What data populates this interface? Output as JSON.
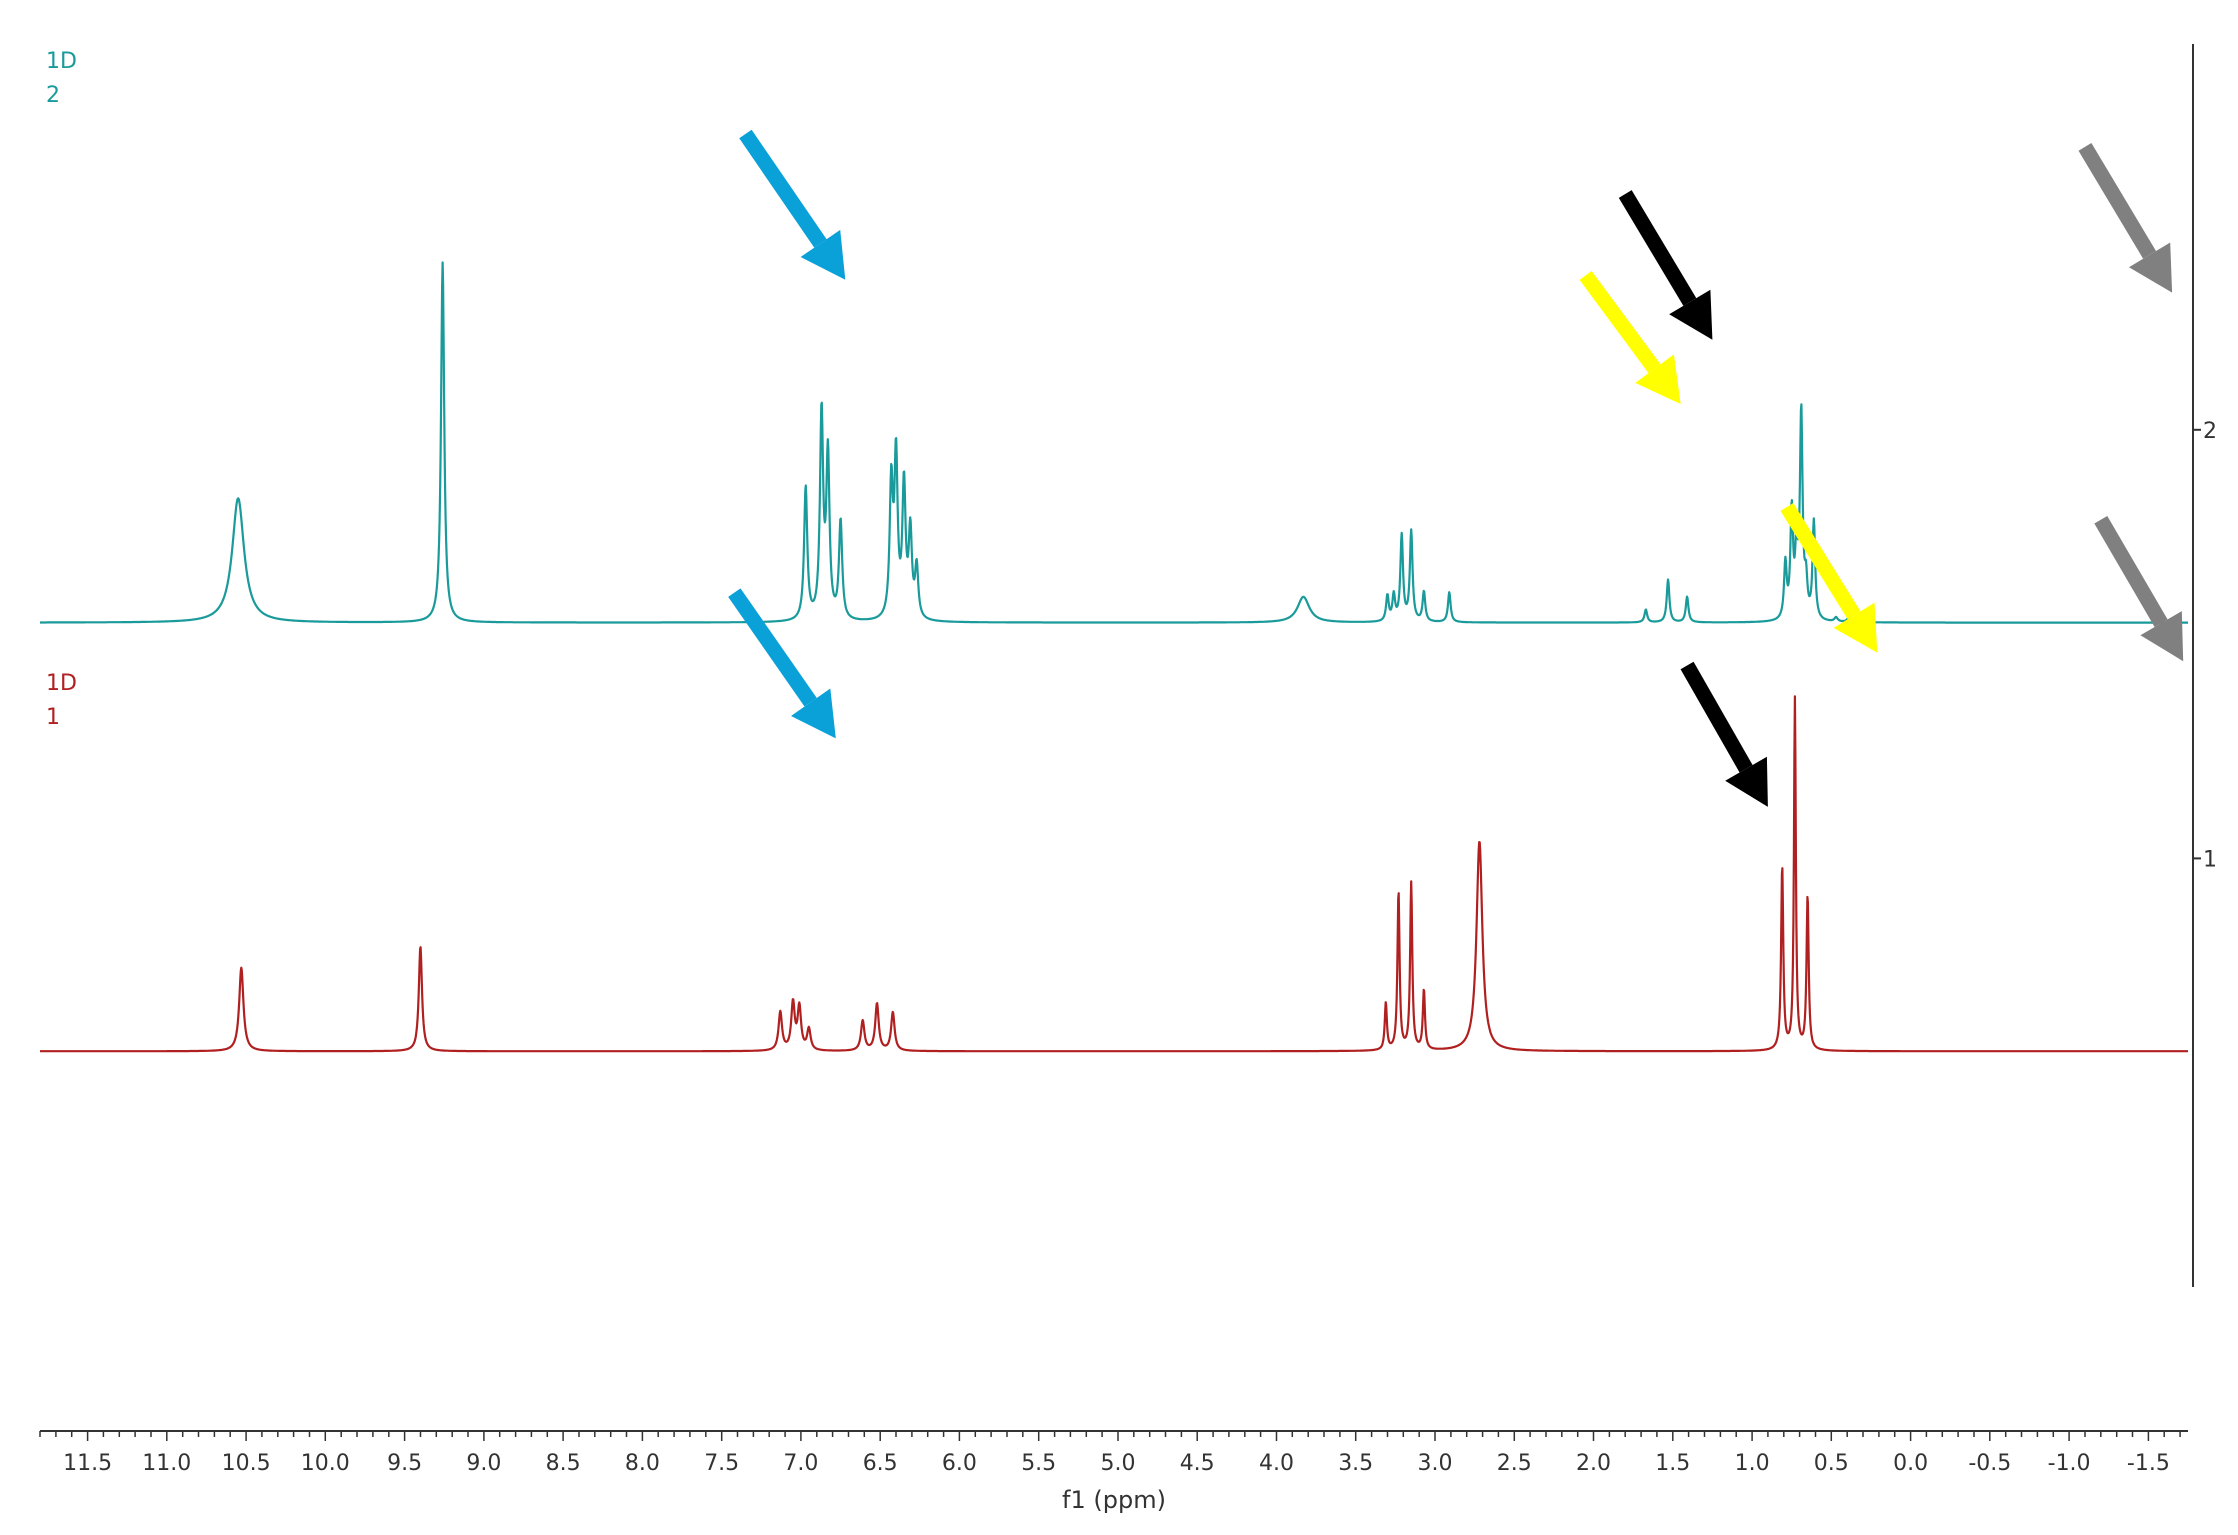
{
  "chart_data": {
    "type": "line",
    "xlabel": "f1 (ppm)",
    "xlim": [
      11.8,
      -1.75
    ],
    "x_ticks": [
      "11.5",
      "11.0",
      "10.5",
      "10.0",
      "9.5",
      "9.0",
      "8.5",
      "8.0",
      "7.5",
      "7.0",
      "6.5",
      "6.0",
      "5.5",
      "5.0",
      "4.5",
      "4.0",
      "3.5",
      "3.0",
      "2.5",
      "2.0",
      "1.5",
      "1.0",
      "0.5",
      "0.0",
      "-0.5",
      "-1.0",
      "-1.5"
    ],
    "x_tick_values": [
      11.5,
      11.0,
      10.5,
      10.0,
      9.5,
      9.0,
      8.5,
      8.0,
      7.5,
      7.0,
      6.5,
      6.0,
      5.5,
      5.0,
      4.5,
      4.0,
      3.5,
      3.0,
      2.5,
      2.0,
      1.5,
      1.0,
      0.5,
      0.0,
      -0.5,
      -1.0,
      -1.5
    ],
    "y_ticks": [
      "2",
      "1"
    ],
    "y_tick_values": [
      2,
      1
    ],
    "ylim": [
      0.0,
      2.9
    ],
    "grid": false,
    "series": [
      {
        "name": "1D\n2",
        "label_lines": [
          "1D",
          "2"
        ],
        "color": "#1a9a9a",
        "baseline": 1.55,
        "peaks": [
          {
            "ppm": 10.55,
            "height": 0.29,
            "width": 0.045
          },
          {
            "ppm": 9.26,
            "height": 0.84,
            "width": 0.012
          },
          {
            "ppm": 6.97,
            "height": 0.31,
            "width": 0.012
          },
          {
            "ppm": 6.87,
            "height": 0.48,
            "width": 0.012
          },
          {
            "ppm": 6.83,
            "height": 0.38,
            "width": 0.012
          },
          {
            "ppm": 6.75,
            "height": 0.23,
            "width": 0.012
          },
          {
            "ppm": 6.43,
            "height": 0.31,
            "width": 0.012
          },
          {
            "ppm": 6.4,
            "height": 0.37,
            "width": 0.012
          },
          {
            "ppm": 6.35,
            "height": 0.31,
            "width": 0.012
          },
          {
            "ppm": 6.31,
            "height": 0.2,
            "width": 0.012
          },
          {
            "ppm": 6.27,
            "height": 0.12,
            "width": 0.012
          },
          {
            "ppm": 3.83,
            "height": 0.06,
            "width": 0.045
          },
          {
            "ppm": 3.3,
            "height": 0.06,
            "width": 0.01
          },
          {
            "ppm": 3.26,
            "height": 0.06,
            "width": 0.01
          },
          {
            "ppm": 3.21,
            "height": 0.2,
            "width": 0.01
          },
          {
            "ppm": 3.15,
            "height": 0.21,
            "width": 0.01
          },
          {
            "ppm": 3.07,
            "height": 0.07,
            "width": 0.01
          },
          {
            "ppm": 2.91,
            "height": 0.07,
            "width": 0.01
          },
          {
            "ppm": 1.67,
            "height": 0.03,
            "width": 0.01
          },
          {
            "ppm": 1.53,
            "height": 0.1,
            "width": 0.01
          },
          {
            "ppm": 1.41,
            "height": 0.06,
            "width": 0.01
          },
          {
            "ppm": 0.79,
            "height": 0.13,
            "width": 0.01
          },
          {
            "ppm": 0.75,
            "height": 0.25,
            "width": 0.01
          },
          {
            "ppm": 0.72,
            "height": 0.15,
            "width": 0.01
          },
          {
            "ppm": 0.69,
            "height": 0.48,
            "width": 0.01
          },
          {
            "ppm": 0.66,
            "height": 0.08,
            "width": 0.01
          },
          {
            "ppm": 0.61,
            "height": 0.23,
            "width": 0.01
          },
          {
            "ppm": 0.47,
            "height": 0.01,
            "width": 0.012
          },
          {
            "ppm": 0.39,
            "height": 0.01,
            "width": 0.012
          },
          {
            "ppm": 0.32,
            "height": 0.01,
            "width": 0.012
          }
        ]
      },
      {
        "name": "1D\n1",
        "label_lines": [
          "1D",
          "1"
        ],
        "color": "#b02020",
        "baseline": 0.55,
        "peaks": [
          {
            "ppm": 10.53,
            "height": 0.195,
            "width": 0.016
          },
          {
            "ppm": 9.4,
            "height": 0.245,
            "width": 0.012
          },
          {
            "ppm": 7.13,
            "height": 0.09,
            "width": 0.013
          },
          {
            "ppm": 7.05,
            "height": 0.11,
            "width": 0.013
          },
          {
            "ppm": 7.01,
            "height": 0.1,
            "width": 0.013
          },
          {
            "ppm": 6.95,
            "height": 0.05,
            "width": 0.013
          },
          {
            "ppm": 6.61,
            "height": 0.07,
            "width": 0.013
          },
          {
            "ppm": 6.52,
            "height": 0.11,
            "width": 0.013
          },
          {
            "ppm": 6.42,
            "height": 0.09,
            "width": 0.013
          },
          {
            "ppm": 3.31,
            "height": 0.11,
            "width": 0.008
          },
          {
            "ppm": 3.23,
            "height": 0.37,
            "width": 0.008
          },
          {
            "ppm": 3.15,
            "height": 0.39,
            "width": 0.008
          },
          {
            "ppm": 3.07,
            "height": 0.14,
            "width": 0.008
          },
          {
            "ppm": 2.72,
            "height": 0.49,
            "width": 0.022
          },
          {
            "ppm": 0.81,
            "height": 0.43,
            "width": 0.008
          },
          {
            "ppm": 0.73,
            "height": 0.82,
            "width": 0.007
          },
          {
            "ppm": 0.65,
            "height": 0.36,
            "width": 0.008
          }
        ]
      }
    ],
    "annotations": [
      {
        "type": "arrow",
        "color": "#0aa0d8",
        "from": [
          7.35,
          2.69
        ],
        "to": [
          6.72,
          2.35
        ]
      },
      {
        "type": "arrow",
        "color": "#000000",
        "from": [
          1.8,
          2.55
        ],
        "to": [
          1.25,
          2.21
        ]
      },
      {
        "type": "arrow",
        "color": "#ffff00",
        "from": [
          2.05,
          2.36
        ],
        "to": [
          1.45,
          2.06
        ]
      },
      {
        "type": "arrow",
        "color": "#808080",
        "from": [
          -1.1,
          2.66
        ],
        "to": [
          -1.65,
          2.32
        ]
      },
      {
        "type": "arrow",
        "color": "#0aa0d8",
        "from": [
          7.42,
          1.62
        ],
        "to": [
          6.78,
          1.28
        ]
      },
      {
        "type": "arrow",
        "color": "#000000",
        "from": [
          1.41,
          1.45
        ],
        "to": [
          0.9,
          1.12
        ]
      },
      {
        "type": "arrow",
        "color": "#ffff00",
        "from": [
          0.78,
          1.82
        ],
        "to": [
          0.21,
          1.48
        ]
      },
      {
        "type": "arrow",
        "color": "#808080",
        "from": [
          -1.2,
          1.79
        ],
        "to": [
          -1.72,
          1.46
        ]
      }
    ]
  }
}
